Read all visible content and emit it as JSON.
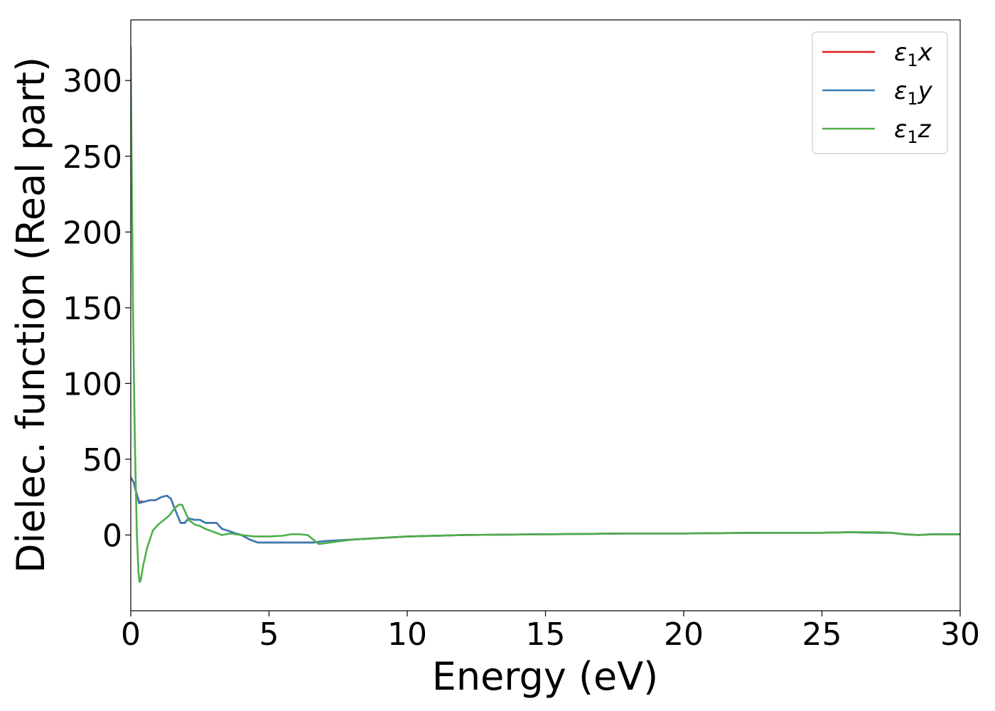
{
  "chart_data": {
    "type": "line",
    "title": "",
    "xlabel": "Energy (eV)",
    "ylabel": "Dielec. function (Real part)",
    "xlim": [
      0,
      30
    ],
    "ylim": [
      -50,
      340
    ],
    "xticks": [
      0,
      5,
      10,
      15,
      20,
      25,
      30
    ],
    "yticks": [
      0,
      50,
      100,
      150,
      200,
      250,
      300
    ],
    "grid": false,
    "legend_position": "top-right",
    "series": [
      {
        "name": "ε1x",
        "legend": {
          "base": "ε",
          "sub": "1",
          "var": "x"
        },
        "color": "#e41a1c",
        "x": [
          0,
          0.1,
          0.2,
          0.3,
          0.5,
          0.7,
          0.9,
          1.1,
          1.3,
          1.45,
          1.6,
          1.8,
          1.95,
          2.1,
          2.3,
          2.5,
          2.7,
          2.9,
          3.1,
          3.3,
          3.5,
          3.8,
          4.0,
          4.3,
          4.6,
          5.0,
          5.4,
          5.8,
          6.2,
          6.6,
          7.0,
          8.0,
          9.0,
          10.0,
          12.0,
          15.0,
          18.0,
          20.0,
          23.0,
          25.0,
          26.0,
          27.0,
          27.5,
          28.0,
          28.5,
          29.0,
          30.0
        ],
        "values": [
          38,
          35,
          28,
          22,
          22,
          23,
          23,
          25,
          26,
          24,
          17,
          8,
          8,
          11,
          10,
          10,
          8,
          8,
          8,
          4,
          3,
          1,
          0,
          -3,
          -5,
          -5,
          -5,
          -5,
          -5,
          -5,
          -4,
          -3,
          -2,
          -1,
          0,
          0.5,
          1,
          1,
          1.5,
          1.5,
          1.8,
          1.5,
          1.5,
          0.5,
          0,
          0.5,
          0.5
        ]
      },
      {
        "name": "ε1y",
        "legend": {
          "base": "ε",
          "sub": "1",
          "var": "y"
        },
        "color": "#377eb8",
        "x": [
          0,
          0.1,
          0.2,
          0.3,
          0.5,
          0.7,
          0.9,
          1.1,
          1.3,
          1.45,
          1.6,
          1.8,
          1.95,
          2.1,
          2.3,
          2.5,
          2.7,
          2.9,
          3.1,
          3.3,
          3.5,
          3.8,
          4.0,
          4.3,
          4.6,
          5.0,
          5.4,
          5.8,
          6.2,
          6.6,
          7.0,
          8.0,
          9.0,
          10.0,
          12.0,
          15.0,
          18.0,
          20.0,
          23.0,
          25.0,
          26.0,
          27.0,
          27.5,
          28.0,
          28.5,
          29.0,
          30.0
        ],
        "values": [
          38,
          35,
          28,
          21,
          22,
          23,
          23,
          25,
          26,
          24,
          17,
          8,
          8,
          11,
          10,
          10,
          8,
          8,
          8,
          4,
          3,
          1,
          0,
          -3,
          -5,
          -5,
          -5,
          -5,
          -5,
          -5,
          -4,
          -3,
          -2,
          -1,
          0,
          0.5,
          1,
          1,
          1.5,
          1.5,
          1.8,
          1.5,
          1.5,
          0.5,
          0,
          0.5,
          0.5
        ]
      },
      {
        "name": "ε1z",
        "legend": {
          "base": "ε",
          "sub": "1",
          "var": "z"
        },
        "color": "#4daf4a",
        "x": [
          0,
          0.03,
          0.08,
          0.15,
          0.22,
          0.28,
          0.32,
          0.36,
          0.45,
          0.6,
          0.8,
          1.0,
          1.2,
          1.4,
          1.6,
          1.75,
          1.85,
          1.95,
          2.1,
          2.3,
          2.5,
          2.7,
          3.0,
          3.3,
          3.6,
          4.0,
          4.5,
          5.0,
          5.5,
          5.8,
          6.1,
          6.4,
          6.6,
          6.8,
          7.2,
          8.0,
          9.0,
          10.0,
          12.0,
          15.0,
          18.0,
          20.0,
          23.0,
          25.0,
          26.0,
          27.0,
          27.5,
          28.0,
          28.5,
          29.0,
          30.0
        ],
        "values": [
          322,
          250,
          150,
          60,
          0,
          -25,
          -31,
          -30,
          -20,
          -8,
          3,
          7,
          10,
          13,
          18,
          20,
          20,
          16,
          10,
          7,
          6,
          4,
          2,
          0,
          1,
          0,
          -1,
          -1,
          -0.5,
          0.5,
          0.5,
          0,
          -3,
          -6,
          -5,
          -3,
          -2,
          -1,
          0,
          0.5,
          1,
          1,
          1.5,
          1.5,
          1.8,
          1.8,
          1.5,
          0.5,
          0,
          0.5,
          0.5
        ]
      }
    ]
  }
}
